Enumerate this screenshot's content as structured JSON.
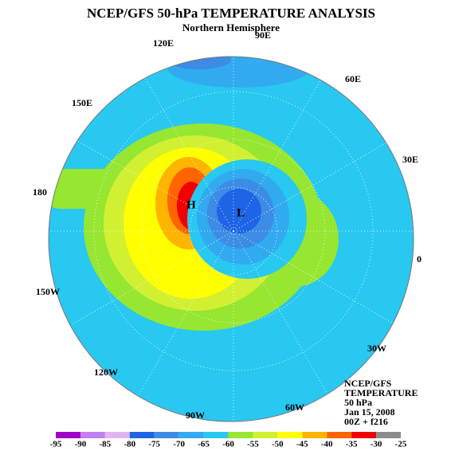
{
  "header": {
    "title": "NCEP/GFS 50-hPa TEMPERATURE ANALYSIS",
    "subtitle": "Northern Hemisphere"
  },
  "map": {
    "longitude_labels": [
      "90E",
      "120E",
      "60E",
      "150E",
      "30E",
      "180",
      "0",
      "150W",
      "30W",
      "120W",
      "60W",
      "90W"
    ],
    "high_label": "H",
    "low_label": "L"
  },
  "info": [
    "NCEP/GFS",
    "TEMPERATURE",
    "50 hPa",
    "Jan 15, 2008",
    "00Z + f216"
  ],
  "colorbar": {
    "ticks": [
      -95,
      -90,
      -85,
      -80,
      -75,
      -70,
      -65,
      -60,
      -55,
      -50,
      -45,
      -40,
      -35,
      -30,
      -25
    ],
    "colors": [
      "#a000c8",
      "#c080f0",
      "#e0b4f0",
      "#1e64e6",
      "#3c8ce6",
      "#32aaf0",
      "#28c8f0",
      "#96e632",
      "#d2f032",
      "#ffff00",
      "#ffb400",
      "#ff6400",
      "#f00000",
      "#8c8c8c"
    ]
  }
}
